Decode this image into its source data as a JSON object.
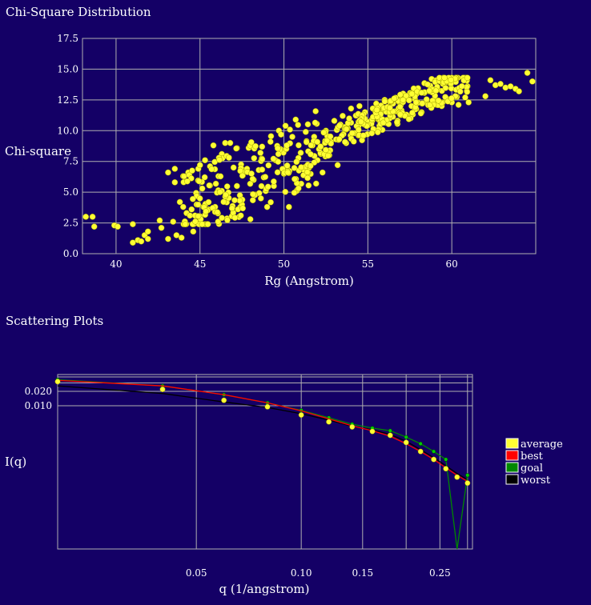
{
  "sections": {
    "chi_title": "Chi-Square Distribution",
    "scatter_title": "Scattering Plots"
  },
  "colors": {
    "background": "#140066",
    "grid": "#b0b0b0",
    "point": "#ffff33",
    "best": "#ff0000",
    "goal": "#008800",
    "worst": "#000000"
  },
  "chart_data": [
    {
      "type": "scatter",
      "title": "",
      "xlabel": "Rg (Angstrom)",
      "ylabel": "Chi-square",
      "xlim": [
        38,
        65
      ],
      "ylim": [
        0,
        17.5
      ],
      "grid": true,
      "xticks": [
        40,
        45,
        50,
        55,
        60
      ],
      "yticks": [
        "0.0",
        "2.5",
        "5.0",
        "7.5",
        "10.0",
        "12.5",
        "15.0",
        "17.5"
      ],
      "points": [
        [
          38.2,
          3.0
        ],
        [
          38.6,
          3.0
        ],
        [
          38.7,
          2.2
        ],
        [
          39.9,
          2.3
        ],
        [
          40.1,
          2.2
        ],
        [
          41.0,
          2.4
        ],
        [
          41.0,
          0.9
        ],
        [
          41.3,
          1.1
        ],
        [
          41.5,
          1.0
        ],
        [
          41.7,
          1.5
        ],
        [
          41.9,
          1.2
        ],
        [
          41.9,
          1.8
        ],
        [
          42.6,
          2.7
        ],
        [
          42.7,
          2.1
        ],
        [
          43.1,
          1.2
        ],
        [
          43.1,
          6.6
        ],
        [
          43.4,
          2.6
        ],
        [
          43.5,
          6.9
        ],
        [
          43.5,
          5.8
        ],
        [
          43.6,
          1.5
        ],
        [
          43.8,
          4.2
        ],
        [
          43.9,
          1.3
        ],
        [
          44.0,
          3.8
        ],
        [
          44.2,
          3.3
        ],
        [
          44.3,
          6.6
        ],
        [
          44.4,
          3.1
        ],
        [
          44.5,
          3.6
        ],
        [
          44.6,
          1.8
        ],
        [
          44.7,
          3.1
        ],
        [
          44.8,
          4.0
        ],
        [
          44.9,
          6.9
        ],
        [
          45.0,
          7.2
        ],
        [
          45.2,
          3.8
        ],
        [
          45.3,
          7.6
        ],
        [
          45.5,
          3.6
        ],
        [
          45.6,
          7.1
        ],
        [
          45.8,
          8.8
        ],
        [
          45.9,
          3.8
        ],
        [
          46.1,
          6.3
        ],
        [
          46.3,
          5.1
        ],
        [
          46.3,
          8.1
        ],
        [
          46.5,
          9.0
        ],
        [
          46.8,
          9.0
        ],
        [
          47.0,
          7.0
        ],
        [
          47.2,
          5.5
        ],
        [
          47.4,
          3.8
        ],
        [
          47.5,
          4.0
        ],
        [
          47.6,
          6.8
        ],
        [
          47.8,
          6.9
        ],
        [
          47.9,
          8.6
        ],
        [
          48.0,
          2.8
        ],
        [
          48.2,
          6.0
        ],
        [
          48.3,
          4.8
        ],
        [
          48.5,
          6.8
        ],
        [
          48.6,
          8.2
        ],
        [
          48.7,
          8.7
        ],
        [
          48.8,
          6.2
        ],
        [
          49.0,
          3.8
        ],
        [
          49.2,
          9.1
        ],
        [
          49.4,
          5.5
        ],
        [
          49.5,
          7.6
        ],
        [
          49.7,
          10.0
        ],
        [
          49.8,
          8.5
        ],
        [
          50.0,
          6.5
        ],
        [
          50.2,
          7.1
        ],
        [
          50.3,
          3.8
        ],
        [
          50.5,
          9.5
        ],
        [
          50.7,
          10.9
        ],
        [
          50.8,
          5.2
        ],
        [
          51.0,
          8.2
        ],
        [
          51.2,
          6.8
        ],
        [
          51.3,
          9.9
        ],
        [
          51.5,
          7.0
        ],
        [
          51.7,
          8.8
        ],
        [
          51.8,
          9.5
        ],
        [
          52.0,
          7.6
        ],
        [
          52.2,
          8.7
        ],
        [
          52.3,
          6.6
        ],
        [
          52.5,
          10.0
        ],
        [
          52.7,
          8.0
        ],
        [
          52.8,
          9.1
        ],
        [
          53.0,
          10.8
        ],
        [
          53.2,
          7.2
        ],
        [
          53.5,
          11.2
        ],
        [
          53.8,
          10.2
        ],
        [
          54.0,
          11.8
        ],
        [
          54.2,
          9.8
        ],
        [
          54.5,
          12.0
        ],
        [
          54.8,
          11.0
        ],
        [
          55.0,
          10.5
        ],
        [
          55.3,
          11.8
        ],
        [
          55.5,
          12.2
        ],
        [
          55.8,
          11.5
        ],
        [
          56.0,
          12.5
        ],
        [
          56.3,
          11.0
        ],
        [
          56.5,
          12.2
        ],
        [
          56.8,
          11.7
        ],
        [
          57.0,
          12.8
        ],
        [
          57.3,
          11.3
        ],
        [
          57.6,
          12.0
        ],
        [
          57.9,
          13.0
        ],
        [
          58.2,
          11.5
        ],
        [
          58.5,
          12.3
        ],
        [
          58.8,
          14.2
        ],
        [
          59.1,
          12.1
        ],
        [
          59.4,
          12.0
        ],
        [
          59.7,
          12.6
        ],
        [
          60.0,
          12.3
        ],
        [
          60.4,
          12.1
        ],
        [
          60.8,
          12.7
        ],
        [
          61.0,
          12.3
        ],
        [
          62.0,
          12.8
        ],
        [
          62.3,
          14.1
        ],
        [
          62.6,
          13.7
        ],
        [
          62.9,
          13.8
        ],
        [
          63.2,
          13.5
        ],
        [
          63.5,
          13.6
        ],
        [
          63.8,
          13.4
        ],
        [
          64.0,
          13.2
        ],
        [
          64.5,
          14.7
        ],
        [
          64.8,
          14.0
        ]
      ]
    },
    {
      "type": "line",
      "title": "",
      "xlabel": "q (1/angstrom)",
      "ylabel": "I(q)",
      "scale": "log-log",
      "grid": true,
      "xticks": [
        "0.05",
        "0.10",
        "0.15",
        "0.25"
      ],
      "yticks": [
        "0.020",
        "0.010"
      ],
      "legend_position": "right",
      "legend": [
        "average",
        "best",
        "goal",
        "worst"
      ],
      "x": [
        0.02,
        0.04,
        0.06,
        0.08,
        0.1,
        0.12,
        0.14,
        0.16,
        0.18,
        0.2,
        0.22,
        0.24,
        0.26,
        0.28,
        0.3
      ],
      "series": [
        {
          "name": "average",
          "values": [
            0.032,
            0.022,
            0.013,
            0.0095,
            0.0064,
            0.0046,
            0.0036,
            0.0029,
            0.0024,
            0.0017,
            0.0011,
            0.00075,
            0.00048,
            0.00032,
            0.00024
          ]
        },
        {
          "name": "best",
          "values": [
            0.034,
            0.026,
            0.017,
            0.0115,
            0.0078,
            0.0053,
            0.0038,
            0.003,
            0.0023,
            0.0016,
            0.0011,
            0.00075,
            0.0005,
            0.00035,
            0.00026
          ]
        },
        {
          "name": "goal",
          "values": [
            0.035,
            0.026,
            0.017,
            0.0115,
            0.008,
            0.0056,
            0.0041,
            0.0034,
            0.003,
            0.0022,
            0.0016,
            0.0011,
            0.00075,
            5e-07,
            0.00035
          ]
        },
        {
          "name": "worst",
          "values": [
            0.026,
            0.018,
            0.012,
            0.0092,
            0.0068,
            0.005,
            0.0037,
            0.0031,
            0.0025,
            0.0018,
            0.0012,
            0.00082,
            0.00055,
            0.00038,
            0.00028
          ]
        }
      ]
    }
  ]
}
